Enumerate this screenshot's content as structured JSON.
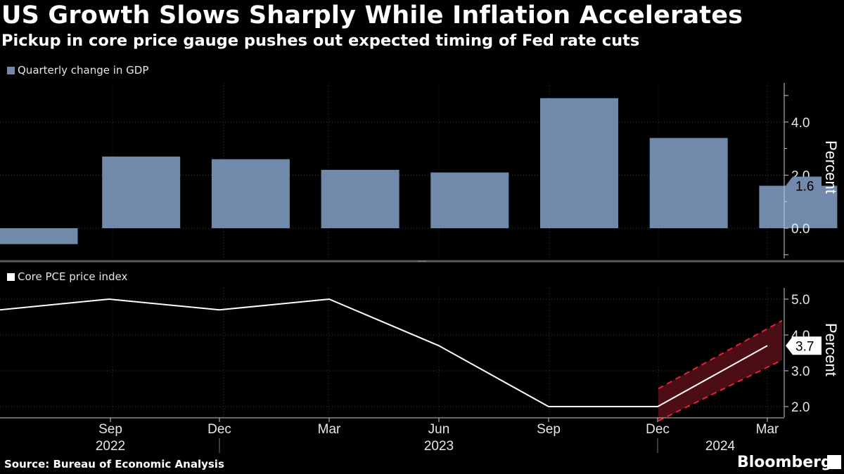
{
  "title": "US Growth Slows Sharply While Inflation Accelerates",
  "subtitle": "Pickup in core price gauge pushes out expected timing of Fed rate cuts",
  "source": "Source: Bureau of Economic Analysis",
  "brand": "Bloomberg",
  "chart_data": [
    {
      "type": "bar",
      "legend": "Quarterly change in GDP",
      "color": "#7189ab",
      "categories": [
        "Jun 2022",
        "Sep 2022",
        "Dec 2022",
        "Mar 2023",
        "Jun 2023",
        "Sep 2023",
        "Dec 2023",
        "Mar 2024"
      ],
      "values": [
        -0.6,
        2.7,
        2.6,
        2.2,
        2.1,
        4.9,
        3.4,
        1.6
      ],
      "ylabel": "Percent",
      "ylim": [
        -1.0,
        5.4
      ],
      "yticks": [
        "0.0",
        "2.0",
        "4.0"
      ],
      "last_value_label": "1.6"
    },
    {
      "type": "line",
      "legend": "Core PCE price index",
      "color": "#ffffff",
      "categories": [
        "Jun 2022",
        "Sep 2022",
        "Dec 2022",
        "Mar 2023",
        "Jun 2023",
        "Sep 2023",
        "Dec 2023",
        "Mar 2024"
      ],
      "values": [
        4.7,
        5.0,
        4.7,
        5.0,
        3.7,
        2.0,
        2.0,
        3.7
      ],
      "band": {
        "color": "#e8213a",
        "from": "Dec 2023",
        "to": "Mar 2024",
        "upper": [
          2.5,
          4.4
        ],
        "lower": [
          1.6,
          3.3
        ]
      },
      "ylabel": "Percent",
      "ylim": [
        1.8,
        5.4
      ],
      "yticks": [
        "2.0",
        "3.0",
        "4.0",
        "5.0"
      ],
      "last_value_label": "3.7"
    }
  ],
  "x_axis": {
    "month_labels": [
      "Sep",
      "Dec",
      "Mar",
      "Jun",
      "Sep",
      "Dec",
      "Mar"
    ],
    "year_labels": [
      "2022",
      "2023",
      "2024"
    ]
  }
}
